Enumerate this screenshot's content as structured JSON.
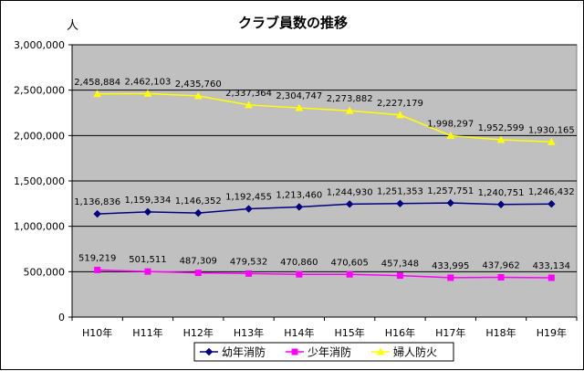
{
  "chart_data": {
    "type": "line",
    "title": "クラブ員数の推移",
    "unit_label": "人",
    "categories": [
      "H10年",
      "H11年",
      "H12年",
      "H13年",
      "H14年",
      "H15年",
      "H16年",
      "H17年",
      "H18年",
      "H19年"
    ],
    "ylim": [
      0,
      3000000
    ],
    "yticks": [
      "0",
      "500,000",
      "1,000,000",
      "1,500,000",
      "2,000,000",
      "2,500,000",
      "3,000,000"
    ],
    "grid": true,
    "legend_position": "bottom",
    "series": [
      {
        "name": "幼年消防",
        "color": "#000080",
        "marker": "diamond",
        "values": [
          1136836,
          1159334,
          1146352,
          1192455,
          1213460,
          1244930,
          1251353,
          1257751,
          1240751,
          1246432
        ],
        "labels": [
          "1,136,836",
          "1,159,334",
          "1,146,352",
          "1,192,455",
          "1,213,460",
          "1,244,930",
          "1,251,353",
          "1,257,751",
          "1,240,751",
          "1,246,432"
        ]
      },
      {
        "name": "少年消防",
        "color": "#ff00ff",
        "marker": "square",
        "values": [
          519219,
          501511,
          487309,
          479532,
          470860,
          470605,
          457348,
          433995,
          437962,
          433134
        ],
        "labels": [
          "519,219",
          "501,511",
          "487,309",
          "479,532",
          "470,860",
          "470,605",
          "457,348",
          "433,995",
          "437,962",
          "433,134"
        ]
      },
      {
        "name": "婦人防火",
        "color": "#ffff00",
        "marker": "triangle",
        "values": [
          2458884,
          2462103,
          2435760,
          2337364,
          2304747,
          2273882,
          2227179,
          1998297,
          1952599,
          1930165
        ],
        "labels": [
          "2,458,884",
          "2,462,103",
          "2,435,760",
          "2,337,364",
          "2,304,747",
          "2,273,882",
          "2,227,179",
          "1,998,297",
          "1,952,599",
          "1,930,165"
        ]
      }
    ],
    "colors": {
      "plot_background": "#c0c0c0",
      "grid": "#000000"
    }
  }
}
